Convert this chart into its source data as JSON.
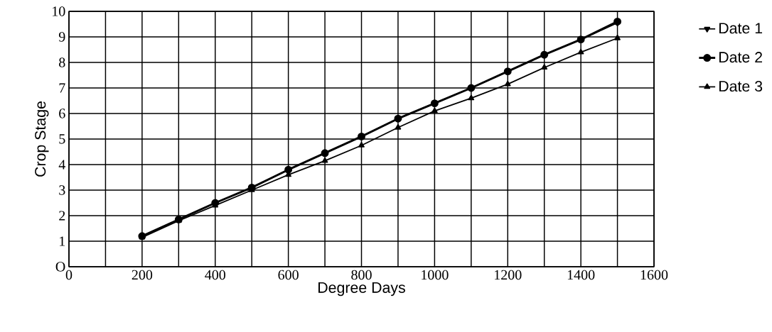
{
  "chart_data": {
    "type": "line",
    "xlabel": "Degree Days",
    "ylabel": "Crop Stage",
    "x": [
      200,
      300,
      400,
      500,
      600,
      700,
      800,
      900,
      1000,
      1100,
      1200,
      1300,
      1400,
      1500
    ],
    "series": [
      {
        "name": "Date 1",
        "color": "#000000",
        "marker": "triangle-down",
        "values": [
          1.2,
          1.85,
          2.5,
          3.1,
          3.8,
          4.45,
          5.1,
          5.8,
          6.4,
          7.0,
          7.65,
          8.3,
          8.9,
          9.55
        ]
      },
      {
        "name": "Date 2",
        "color": "#000000",
        "marker": "circle",
        "values": [
          1.2,
          1.85,
          2.5,
          3.1,
          3.8,
          4.45,
          5.1,
          5.8,
          6.4,
          7.0,
          7.65,
          8.3,
          8.9,
          9.6
        ]
      },
      {
        "name": "Date 3",
        "color": "#000000",
        "marker": "triangle",
        "values": [
          1.15,
          1.8,
          2.4,
          3.0,
          3.6,
          4.15,
          4.75,
          5.45,
          6.1,
          6.6,
          7.15,
          7.8,
          8.4,
          8.95
        ]
      }
    ],
    "xlim": [
      0,
      1600
    ],
    "ylim": [
      0,
      10
    ],
    "xticks": [
      0,
      {
        "value": 100,
        "label": null
      },
      200,
      {
        "value": 300,
        "label": null
      },
      400,
      {
        "value": 500,
        "label": null
      },
      600,
      {
        "value": 700,
        "label": null
      },
      800,
      {
        "value": 900,
        "label": null
      },
      1000,
      {
        "value": 1100,
        "label": null
      },
      1200,
      {
        "value": 1300,
        "label": null
      },
      1400,
      {
        "value": 1500,
        "label": null
      },
      1600
    ],
    "yticks": [
      {
        "value": 0,
        "label": "O"
      },
      1,
      2,
      3,
      4,
      5,
      6,
      7,
      8,
      9,
      10
    ],
    "grid": true,
    "legend": "right",
    "line_style": "solid"
  }
}
